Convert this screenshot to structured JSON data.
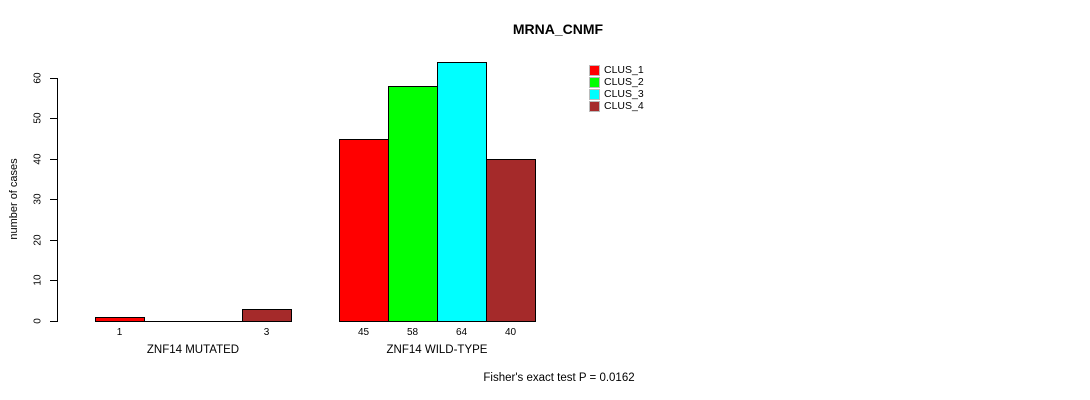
{
  "chart_data": {
    "type": "bar",
    "grouped": true,
    "title": "MRNA_CNMF",
    "xlabel": "",
    "ylabel": "number of cases",
    "ylim": [
      0,
      60
    ],
    "yticks": [
      0,
      10,
      20,
      30,
      40,
      50,
      60
    ],
    "grid": false,
    "legend_position": "top-right",
    "categories": [
      "ZNF14 MUTATED",
      "ZNF14 WILD-TYPE"
    ],
    "series": [
      {
        "name": "CLUS_1",
        "color": "#FF0000",
        "values": [
          1,
          45
        ]
      },
      {
        "name": "CLUS_2",
        "color": "#00FF00",
        "values": [
          0,
          58
        ]
      },
      {
        "name": "CLUS_3",
        "color": "#00FFFF",
        "values": [
          0,
          64
        ]
      },
      {
        "name": "CLUS_4",
        "color": "#A52A2A",
        "values": [
          3,
          40
        ]
      }
    ],
    "bar_value_labels": {
      "shown_for_nonzero_only": true,
      "ZNF14 MUTATED": [
        "1",
        "",
        "",
        "3"
      ],
      "ZNF14 WILD-TYPE": [
        "45",
        "58",
        "64",
        "40"
      ]
    },
    "annotation": "Fisher's exact test P = 0.0162",
    "bar_border_color": "#000000",
    "background_color": "#FFFFFF"
  }
}
